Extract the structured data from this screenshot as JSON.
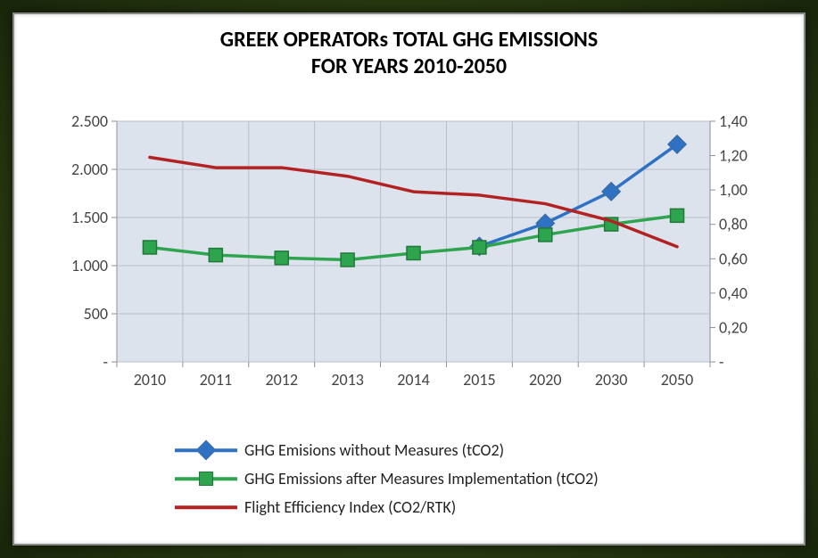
{
  "title_line1": "GREEK OPERATORs TOTAL GHG EMISSIONS",
  "title_line2": "FOR YEARS 2010-2050",
  "title_fontsize": 24,
  "chart": {
    "type": "line",
    "background_color": "#dde3ed",
    "plot_bg": "#dde3ed",
    "grid_color": "#b8bfc9",
    "axis_color": "#8a8f96",
    "tick_font_size": 18,
    "tick_color": "#444",
    "categories": [
      "2010",
      "2011",
      "2012",
      "2013",
      "2014",
      "2015",
      "2020",
      "2030",
      "2050"
    ],
    "y_left": {
      "min": 0,
      "max": 2500,
      "step": 500,
      "labels": [
        "-",
        "500",
        "1.000",
        "1.500",
        "2.000",
        "2.500"
      ]
    },
    "y_right": {
      "min": 0,
      "max": 1.4,
      "step": 0.2,
      "labels": [
        "-",
        "0,20",
        "0,40",
        "0,60",
        "0,80",
        "1,00",
        "1,20",
        "1,40"
      ]
    },
    "series": [
      {
        "name": "GHG Emisions without Measures (tCO2)",
        "axis": "left",
        "color": "#2f72c4",
        "line_width": 3.5,
        "marker": "diamond",
        "marker_size": 12,
        "marker_border": "#3a6ba8",
        "values": [
          null,
          null,
          null,
          null,
          null,
          1200,
          1440,
          1770,
          2260
        ]
      },
      {
        "name": "GHG Emissions  after Measures Implementation (tCO2)",
        "axis": "left",
        "color": "#2ea44f",
        "line_width": 3.5,
        "marker": "square",
        "marker_size": 12,
        "marker_border": "#1f7a38",
        "values": [
          1190,
          1110,
          1080,
          1060,
          1130,
          1190,
          1320,
          1430,
          1520
        ]
      },
      {
        "name": "Flight Efficiency Index (CO2/RTK)",
        "axis": "right",
        "color": "#b22222",
        "line_width": 3.5,
        "marker": "none",
        "marker_size": 0,
        "values": [
          1.19,
          1.13,
          1.13,
          1.08,
          0.99,
          0.97,
          0.92,
          0.82,
          0.67
        ]
      }
    ]
  },
  "legend": {
    "font_size": 18,
    "marker_size": 14
  }
}
